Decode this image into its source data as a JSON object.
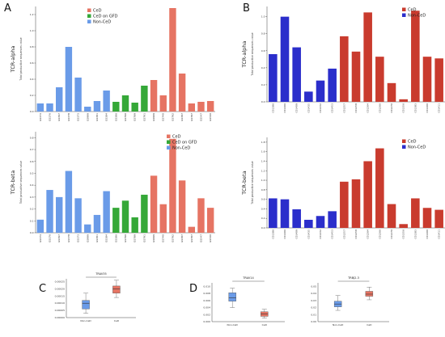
{
  "panels": {
    "A": "A",
    "B": "B",
    "C": "C",
    "D": "D"
  },
  "colors": {
    "celd": "#e67463",
    "celd_gfd": "#35a838",
    "nonceld": "#6a9be8",
    "celd_dark": "#c93b2e",
    "nonceld_dark": "#2b2ecb"
  },
  "chart_data": [
    {
      "id": "A-alpha",
      "type": "bar",
      "ylabel": "TCR-alpha",
      "ylabel_sub": "Total productive sequences value",
      "ylim": [
        0,
        1.3
      ],
      "yticks": [
        0.0,
        0.2,
        0.4,
        0.6,
        0.8,
        1.0,
        1.2
      ],
      "legend": [
        "CeD",
        "CeD on GFD",
        "Non-CeD"
      ],
      "legend_placement": "top-center",
      "categories": [
        "GS374",
        "GS376",
        "GS397",
        "GS378",
        "GS373",
        "GS999",
        "GS381",
        "GS384",
        "GS386",
        "GS790",
        "GS789",
        "GS791",
        "GS999",
        "GS740",
        "GS792",
        "GS387",
        "GS787",
        "GS547",
        "GS500"
      ],
      "groups": [
        "Non-CeD",
        "Non-CeD",
        "Non-CeD",
        "Non-CeD",
        "Non-CeD",
        "Non-CeD",
        "Non-CeD",
        "Non-CeD",
        "CeD on GFD",
        "CeD on GFD",
        "CeD on GFD",
        "CeD on GFD",
        "CeD",
        "CeD",
        "CeD",
        "CeD",
        "CeD",
        "CeD",
        "CeD"
      ],
      "values": [
        0.1,
        0.1,
        0.3,
        0.8,
        0.42,
        0.06,
        0.13,
        0.26,
        0.12,
        0.2,
        0.11,
        0.32,
        0.39,
        0.2,
        1.28,
        0.47,
        0.1,
        0.12,
        0.13
      ]
    },
    {
      "id": "A-beta",
      "type": "bar",
      "ylabel": "TCR-beta",
      "ylabel_sub": "Total productive sequences value",
      "ylim": [
        0,
        0.85
      ],
      "yticks": [
        0.0,
        0.1,
        0.2,
        0.3,
        0.4,
        0.5,
        0.6,
        0.7,
        0.8
      ],
      "legend": [
        "CeD",
        "CeD on GFD",
        "Non-CeD"
      ],
      "legend_placement": "top-right",
      "categories": [
        "GS374",
        "GS376",
        "GS397",
        "GS378",
        "GS373",
        "GS999",
        "GS381",
        "GS384",
        "GS386",
        "GS790",
        "GS789",
        "GS791",
        "GS999",
        "GS740",
        "GS792",
        "GS387",
        "GS787",
        "GS547",
        "GS500"
      ],
      "groups": [
        "Non-CeD",
        "Non-CeD",
        "Non-CeD",
        "Non-CeD",
        "Non-CeD",
        "Non-CeD",
        "Non-CeD",
        "Non-CeD",
        "CeD on GFD",
        "CeD on GFD",
        "CeD on GFD",
        "CeD on GFD",
        "CeD",
        "CeD",
        "CeD",
        "CeD",
        "CeD",
        "CeD",
        "CeD"
      ],
      "values": [
        0.11,
        0.36,
        0.3,
        0.52,
        0.29,
        0.07,
        0.15,
        0.35,
        0.21,
        0.27,
        0.13,
        0.32,
        0.48,
        0.24,
        0.79,
        0.44,
        0.05,
        0.29,
        0.21
      ]
    },
    {
      "id": "B-alpha",
      "type": "bar",
      "ylabel": "TCR-alpha",
      "ylabel_sub": "Total productive sequences value",
      "ylim": [
        0,
        1.12
      ],
      "yticks": [
        0.0,
        0.2,
        0.4,
        0.6,
        0.8,
        1.0
      ],
      "legend": [
        "CeD",
        "Non-CeD"
      ],
      "legend_placement": "top-right",
      "categories": [
        "C01386",
        "C01406",
        "C01409",
        "C01435",
        "C01432",
        "C01453",
        "C01257",
        "C01258",
        "C01264",
        "C01266",
        "C01270",
        "C01356",
        "C01383",
        "C01400",
        "C01411"
      ],
      "groups": [
        "Non-CeD",
        "Non-CeD",
        "Non-CeD",
        "Non-CeD",
        "Non-CeD",
        "Non-CeD",
        "CeD",
        "CeD",
        "CeD",
        "CeD",
        "CeD",
        "CeD",
        "CeD",
        "CeD",
        "CeD"
      ],
      "values": [
        0.56,
        1.0,
        0.64,
        0.12,
        0.25,
        0.39,
        0.77,
        0.59,
        1.05,
        0.53,
        0.22,
        0.03,
        1.07,
        0.53,
        0.51
      ]
    },
    {
      "id": "B-beta",
      "type": "bar",
      "ylabel": "TCR-beta",
      "ylabel_sub": "Total productive sequences value",
      "ylim": [
        0,
        1.9
      ],
      "yticks": [
        0.0,
        0.2,
        0.4,
        0.6,
        0.8,
        1.0,
        1.2,
        1.4,
        1.6,
        1.8
      ],
      "legend": [
        "CeD",
        "Non-CeD"
      ],
      "legend_placement": "top-right",
      "categories": [
        "C01386",
        "C01406",
        "C01409",
        "C01435",
        "C01432",
        "C01453",
        "C01257",
        "C01258",
        "C01264",
        "C01266",
        "C01270",
        "C01356",
        "C01383",
        "C01400",
        "C01411"
      ],
      "groups": [
        "Non-CeD",
        "Non-CeD",
        "Non-CeD",
        "Non-CeD",
        "Non-CeD",
        "Non-CeD",
        "CeD",
        "CeD",
        "CeD",
        "CeD",
        "CeD",
        "CeD",
        "CeD",
        "CeD",
        "CeD"
      ],
      "values": [
        0.62,
        0.6,
        0.39,
        0.17,
        0.25,
        0.35,
        0.97,
        1.02,
        1.4,
        1.67,
        0.5,
        0.08,
        0.62,
        0.42,
        0.38
      ]
    },
    {
      "id": "C",
      "type": "box",
      "title": "TRAV35",
      "categories": [
        "Non-CeD",
        "CeD"
      ],
      "yticks": [
        "0.00000",
        "0.00005",
        "0.00010",
        "0.00015",
        "0.00020",
        "0.00025"
      ],
      "ylim": [
        0,
        0.00027
      ],
      "boxes": [
        {
          "name": "Non-CeD",
          "min": 3e-05,
          "q1": 6e-05,
          "median": 0.0001,
          "q3": 0.00012,
          "max": 0.00017
        },
        {
          "name": "CeD",
          "min": 0.00014,
          "q1": 0.00017,
          "median": 0.0002,
          "q3": 0.00022,
          "max": 0.00026
        }
      ]
    },
    {
      "id": "D-1",
      "type": "box",
      "title": "TRAV14",
      "categories": [
        "Non-CeD",
        "CeD"
      ],
      "yticks": [
        "0.000",
        "0.002",
        "0.004",
        "0.006",
        "0.008",
        "0.010"
      ],
      "ylim": [
        0,
        0.011
      ],
      "boxes": [
        {
          "name": "Non-CeD",
          "min": 0.004,
          "q1": 0.0058,
          "median": 0.0068,
          "q3": 0.0082,
          "max": 0.0095
        },
        {
          "name": "CeD",
          "min": 0.001,
          "q1": 0.0015,
          "median": 0.0022,
          "q3": 0.0028,
          "max": 0.0035
        }
      ]
    },
    {
      "id": "D-2",
      "type": "box",
      "title": "TRBJ2-3",
      "categories": [
        "Non-CeD",
        "CeD"
      ],
      "yticks": [
        "0.00",
        "0.01",
        "0.02",
        "0.03",
        "0.04",
        "0.05"
      ],
      "ylim": [
        0,
        0.055
      ],
      "boxes": [
        {
          "name": "Non-CeD",
          "min": 0.016,
          "q1": 0.021,
          "median": 0.025,
          "q3": 0.029,
          "max": 0.037
        },
        {
          "name": "CeD",
          "min": 0.031,
          "q1": 0.036,
          "median": 0.039,
          "q3": 0.043,
          "max": 0.049
        }
      ]
    }
  ]
}
